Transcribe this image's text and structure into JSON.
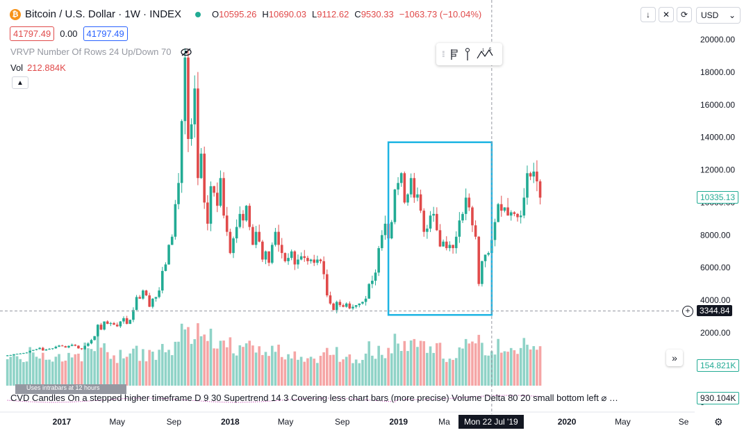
{
  "header": {
    "symbol_icon": "bitcoin-icon",
    "symbol": "Bitcoin / U.S. Dollar · 1W · INDEX",
    "ohlc": [
      {
        "k": "O",
        "v": "10595.26"
      },
      {
        "k": "H",
        "v": "10690.03"
      },
      {
        "k": "L",
        "v": "9112.62"
      },
      {
        "k": "C",
        "v": "9530.33"
      },
      {
        "k": "",
        "v": "−1063.73 (−10.04%)"
      }
    ],
    "sell_price": "41797.49",
    "spread": "0.00",
    "buy_price": "41797.49",
    "vrvp_label": "VRVP Number Of Rows 24 Up/Down 70",
    "vol_label": "Vol",
    "vol_value": "212.884K"
  },
  "toolbar": {
    "currency": "USD"
  },
  "price_axis": {
    "labels": [
      "20000.00",
      "18000.00",
      "16000.00",
      "14000.00",
      "12000.00",
      "10000.00",
      "8000.00",
      "6000.00",
      "4000.00",
      "2000.00"
    ],
    "last_price": "10335.13",
    "crosshair_price": "3344.84",
    "volume_last": "154.821K",
    "cvd_last": "930.104K",
    "cvd_zero": "0"
  },
  "time_axis": {
    "labels": [
      "2017",
      "May",
      "Sep",
      "2018",
      "May",
      "Sep",
      "2019",
      "Ma",
      "2020",
      "May",
      "Se"
    ],
    "crosshair_date": "Mon 22 Jul '19"
  },
  "cvd": {
    "text": "CVD Candles On a stepped higher timeframe D 9 30 Supertrend 14 3 Covering less chart bars (more precise) Volume Delta 80 20 small bottom left  ⌀  …",
    "tooltip": "Uses intrabars at 12 hours"
  },
  "colors": {
    "up": "#22ab94",
    "down": "#e04a4a",
    "vol_up": "#8fd3c7",
    "vol_down": "#f5a5a5",
    "highlight_box": "#1cb4e3"
  },
  "chart_data": {
    "type": "candlestick",
    "symbol": "Bitcoin / U.S. Dollar",
    "interval": "1W",
    "y_range": [
      0,
      21000
    ],
    "x_range": [
      "2016-09-01",
      "2020-10-01"
    ],
    "highlight_box": {
      "from": "2018-12-10",
      "to": "2019-07-22",
      "low": 3100,
      "high": 13700
    },
    "crosshair": {
      "date": "2019-07-22",
      "price": 3344.84
    },
    "weekly_close": [
      [
        575,
        620
      ],
      [
        605,
        640
      ],
      [
        640,
        690
      ],
      [
        690,
        710
      ],
      [
        710,
        730
      ],
      [
        735,
        760
      ],
      [
        760,
        790
      ],
      [
        800,
        900
      ],
      [
        900,
        950
      ],
      [
        950,
        1000
      ],
      [
        1000,
        1080
      ],
      [
        1080,
        920
      ],
      [
        920,
        980
      ],
      [
        980,
        1020
      ],
      [
        1020,
        1050
      ],
      [
        1050,
        1150
      ],
      [
        1150,
        1220
      ],
      [
        1220,
        1180
      ],
      [
        1180,
        1100
      ],
      [
        1100,
        1200
      ],
      [
        1200,
        1270
      ],
      [
        1270,
        1210
      ],
      [
        1210,
        1050
      ],
      [
        1050,
        1000
      ],
      [
        1000,
        1200
      ],
      [
        1200,
        1350
      ],
      [
        1350,
        1560
      ],
      [
        1560,
        1800
      ],
      [
        1800,
        2500
      ],
      [
        2500,
        2200
      ],
      [
        2200,
        2700
      ],
      [
        2700,
        2550
      ],
      [
        2550,
        2600
      ],
      [
        2600,
        2500
      ],
      [
        2500,
        2400
      ],
      [
        2400,
        2700
      ],
      [
        2700,
        2900
      ],
      [
        2900,
        2550
      ],
      [
        2550,
        2800
      ],
      [
        2800,
        3400
      ],
      [
        3400,
        4200
      ],
      [
        4200,
        4100
      ],
      [
        4100,
        4600
      ],
      [
        4600,
        4300
      ],
      [
        4300,
        3600
      ],
      [
        3600,
        4100
      ],
      [
        4100,
        4200
      ],
      [
        4200,
        4600
      ],
      [
        4600,
        5800
      ],
      [
        5800,
        6200
      ],
      [
        6200,
        7400
      ],
      [
        7400,
        7900
      ],
      [
        7900,
        9900
      ],
      [
        9900,
        11200
      ],
      [
        11200,
        15000
      ],
      [
        15000,
        18900
      ],
      [
        18900,
        13900
      ],
      [
        13900,
        14800
      ],
      [
        14800,
        17000
      ],
      [
        17000,
        11500
      ],
      [
        11500,
        13000
      ],
      [
        13000,
        10000
      ],
      [
        10000,
        8700
      ],
      [
        8700,
        11000
      ],
      [
        11000,
        10600
      ],
      [
        10600,
        9800
      ],
      [
        9800,
        11500
      ],
      [
        11500,
        9200
      ],
      [
        9200,
        8200
      ],
      [
        8200,
        6900
      ],
      [
        6900,
        7800
      ],
      [
        7800,
        8500
      ],
      [
        8500,
        9300
      ],
      [
        9300,
        8900
      ],
      [
        8900,
        9800
      ],
      [
        9800,
        8500
      ],
      [
        8500,
        7400
      ],
      [
        7400,
        8200
      ],
      [
        8200,
        7600
      ],
      [
        7600,
        6500
      ],
      [
        6500,
        7000
      ],
      [
        7000,
        6300
      ],
      [
        6300,
        7400
      ],
      [
        7400,
        8200
      ],
      [
        8200,
        7400
      ],
      [
        7400,
        6900
      ],
      [
        6900,
        6400
      ],
      [
        6400,
        6600
      ],
      [
        6600,
        7000
      ],
      [
        7000,
        6200
      ],
      [
        6200,
        6500
      ],
      [
        6500,
        6700
      ],
      [
        6700,
        6600
      ],
      [
        6600,
        6400
      ],
      [
        6400,
        6500
      ],
      [
        6500,
        6300
      ],
      [
        6300,
        6500
      ],
      [
        6500,
        6400
      ],
      [
        6400,
        5600
      ],
      [
        5600,
        4300
      ],
      [
        4300,
        3800
      ],
      [
        3800,
        3400
      ],
      [
        3400,
        3900
      ],
      [
        3900,
        3700
      ],
      [
        3700,
        3600
      ],
      [
        3600,
        3800
      ],
      [
        3800,
        3500
      ],
      [
        3500,
        3600
      ],
      [
        3600,
        3700
      ],
      [
        3700,
        3800
      ],
      [
        3800,
        3900
      ],
      [
        3900,
        4100
      ],
      [
        4100,
        5000
      ],
      [
        5000,
        5200
      ],
      [
        5200,
        5700
      ],
      [
        5700,
        7200
      ],
      [
        7200,
        8000
      ],
      [
        8000,
        8700
      ],
      [
        8700,
        7800
      ],
      [
        7800,
        8800
      ],
      [
        8800,
        10800
      ],
      [
        10800,
        11200
      ],
      [
        11200,
        11800
      ],
      [
        11800,
        10000
      ],
      [
        10000,
        10500
      ],
      [
        10500,
        11500
      ],
      [
        11500,
        10300
      ],
      [
        10300,
        10500
      ],
      [
        10500,
        9500
      ],
      [
        9500,
        8200
      ],
      [
        8200,
        8400
      ],
      [
        8400,
        9200
      ],
      [
        9200,
        9300
      ],
      [
        9300,
        8300
      ],
      [
        8300,
        7300
      ],
      [
        7300,
        7600
      ],
      [
        7600,
        7200
      ],
      [
        7200,
        7400
      ],
      [
        7400,
        7200
      ],
      [
        7200,
        7900
      ],
      [
        7900,
        8900
      ],
      [
        8900,
        9300
      ],
      [
        9300,
        10300
      ],
      [
        10300,
        9700
      ],
      [
        9700,
        8600
      ],
      [
        8600,
        7900
      ],
      [
        7900,
        5000
      ],
      [
        5000,
        6400
      ],
      [
        6400,
        6800
      ],
      [
        6800,
        6900
      ],
      [
        6900,
        7700
      ],
      [
        7700,
        8800
      ],
      [
        8800,
        9900
      ],
      [
        9900,
        9500
      ],
      [
        9500,
        9700
      ],
      [
        9700,
        9200
      ],
      [
        9200,
        9400
      ],
      [
        9400,
        9300
      ],
      [
        9300,
        9100
      ],
      [
        9100,
        9200
      ],
      [
        9200,
        10300
      ],
      [
        10300,
        11800
      ],
      [
        11800,
        11600
      ],
      [
        11600,
        11900
      ],
      [
        11900,
        11300
      ],
      [
        11300,
        10300
      ]
    ],
    "cvd_label_note": ""
  }
}
